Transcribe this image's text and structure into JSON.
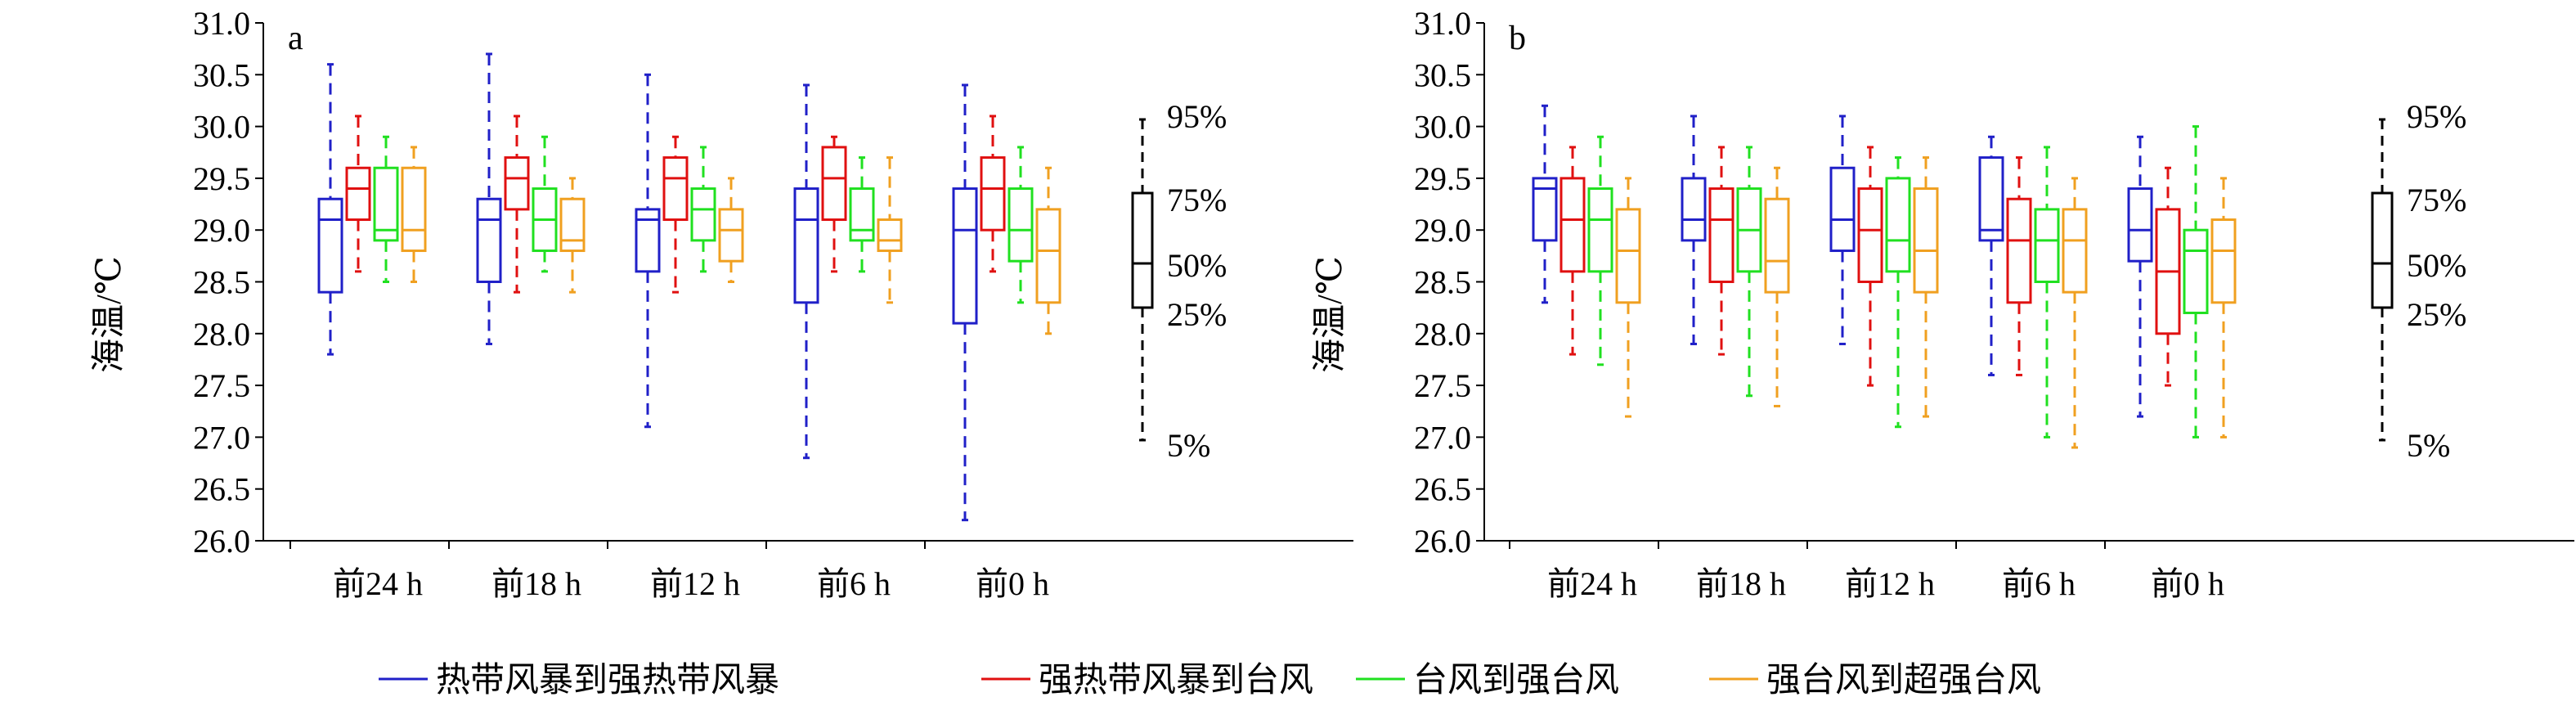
{
  "chart_data": {
    "type": "boxplot",
    "ylabel": "海温/℃",
    "ylim": [
      26.0,
      31.0
    ],
    "yticks": [
      "26.0",
      "26.5",
      "27.0",
      "27.5",
      "28.0",
      "28.5",
      "29.0",
      "29.5",
      "30.0",
      "30.5",
      "31.0"
    ],
    "categories": [
      "前24 h",
      "前18 h",
      "前12 h",
      "前6 h",
      "前0 h"
    ],
    "legend": [
      {
        "name": "热带风暴到强热带风暴",
        "color": "#2020C8"
      },
      {
        "name": "强热带风暴到台风",
        "color": "#E01010"
      },
      {
        "name": "台风到强台风",
        "color": "#20E020"
      },
      {
        "name": "强台风到超强台风",
        "color": "#F0A020"
      }
    ],
    "key": {
      "labels": [
        "95%",
        "75%",
        "50%",
        "25%",
        "5%"
      ]
    },
    "panels": [
      {
        "label": "a",
        "series": [
          {
            "name": "热带风暴到强热带风暴",
            "boxes": [
              {
                "p5": 27.8,
                "q1": 28.4,
                "median": 29.1,
                "q3": 29.3,
                "p95": 30.6
              },
              {
                "p5": 27.9,
                "q1": 28.5,
                "median": 29.1,
                "q3": 29.3,
                "p95": 30.7
              },
              {
                "p5": 27.1,
                "q1": 28.6,
                "median": 29.1,
                "q3": 29.2,
                "p95": 30.5
              },
              {
                "p5": 26.8,
                "q1": 28.3,
                "median": 29.1,
                "q3": 29.4,
                "p95": 30.4
              },
              {
                "p5": 26.2,
                "q1": 28.1,
                "median": 29.0,
                "q3": 29.4,
                "p95": 30.4
              }
            ]
          },
          {
            "name": "强热带风暴到台风",
            "boxes": [
              {
                "p5": 28.6,
                "q1": 29.1,
                "median": 29.4,
                "q3": 29.6,
                "p95": 30.1
              },
              {
                "p5": 28.4,
                "q1": 29.2,
                "median": 29.5,
                "q3": 29.7,
                "p95": 30.1
              },
              {
                "p5": 28.4,
                "q1": 29.1,
                "median": 29.5,
                "q3": 29.7,
                "p95": 29.9
              },
              {
                "p5": 28.6,
                "q1": 29.1,
                "median": 29.5,
                "q3": 29.8,
                "p95": 29.9
              },
              {
                "p5": 28.6,
                "q1": 29.0,
                "median": 29.4,
                "q3": 29.7,
                "p95": 30.1
              }
            ]
          },
          {
            "name": "台风到强台风",
            "boxes": [
              {
                "p5": 28.5,
                "q1": 28.9,
                "median": 29.0,
                "q3": 29.6,
                "p95": 29.9
              },
              {
                "p5": 28.6,
                "q1": 28.8,
                "median": 29.1,
                "q3": 29.4,
                "p95": 29.9
              },
              {
                "p5": 28.6,
                "q1": 28.9,
                "median": 29.2,
                "q3": 29.4,
                "p95": 29.8
              },
              {
                "p5": 28.6,
                "q1": 28.9,
                "median": 29.0,
                "q3": 29.4,
                "p95": 29.7
              },
              {
                "p5": 28.3,
                "q1": 28.7,
                "median": 29.0,
                "q3": 29.4,
                "p95": 29.8
              }
            ]
          },
          {
            "name": "强台风到超强台风",
            "boxes": [
              {
                "p5": 28.5,
                "q1": 28.8,
                "median": 29.0,
                "q3": 29.6,
                "p95": 29.8
              },
              {
                "p5": 28.4,
                "q1": 28.8,
                "median": 28.9,
                "q3": 29.3,
                "p95": 29.5
              },
              {
                "p5": 28.5,
                "q1": 28.7,
                "median": 29.0,
                "q3": 29.2,
                "p95": 29.5
              },
              {
                "p5": 28.3,
                "q1": 28.8,
                "median": 28.9,
                "q3": 29.1,
                "p95": 29.7
              },
              {
                "p5": 28.0,
                "q1": 28.3,
                "median": 28.8,
                "q3": 29.2,
                "p95": 29.6
              }
            ]
          }
        ]
      },
      {
        "label": "b",
        "series": [
          {
            "name": "热带风暴到强热带风暴",
            "boxes": [
              {
                "p5": 28.3,
                "q1": 28.9,
                "median": 29.4,
                "q3": 29.5,
                "p95": 30.2
              },
              {
                "p5": 27.9,
                "q1": 28.9,
                "median": 29.1,
                "q3": 29.5,
                "p95": 30.1
              },
              {
                "p5": 27.9,
                "q1": 28.8,
                "median": 29.1,
                "q3": 29.6,
                "p95": 30.1
              },
              {
                "p5": 27.6,
                "q1": 28.9,
                "median": 29.0,
                "q3": 29.7,
                "p95": 29.9
              },
              {
                "p5": 27.2,
                "q1": 28.7,
                "median": 29.0,
                "q3": 29.4,
                "p95": 29.9
              }
            ]
          },
          {
            "name": "强热带风暴到台风",
            "boxes": [
              {
                "p5": 27.8,
                "q1": 28.6,
                "median": 29.1,
                "q3": 29.5,
                "p95": 29.8
              },
              {
                "p5": 27.8,
                "q1": 28.5,
                "median": 29.1,
                "q3": 29.4,
                "p95": 29.8
              },
              {
                "p5": 27.5,
                "q1": 28.5,
                "median": 29.0,
                "q3": 29.4,
                "p95": 29.8
              },
              {
                "p5": 27.6,
                "q1": 28.3,
                "median": 28.9,
                "q3": 29.3,
                "p95": 29.7
              },
              {
                "p5": 27.5,
                "q1": 28.0,
                "median": 28.6,
                "q3": 29.2,
                "p95": 29.6
              }
            ]
          },
          {
            "name": "台风到强台风",
            "boxes": [
              {
                "p5": 27.7,
                "q1": 28.6,
                "median": 29.1,
                "q3": 29.4,
                "p95": 29.9
              },
              {
                "p5": 27.4,
                "q1": 28.6,
                "median": 29.0,
                "q3": 29.4,
                "p95": 29.8
              },
              {
                "p5": 27.1,
                "q1": 28.6,
                "median": 28.9,
                "q3": 29.5,
                "p95": 29.7
              },
              {
                "p5": 27.0,
                "q1": 28.5,
                "median": 28.9,
                "q3": 29.2,
                "p95": 29.8
              },
              {
                "p5": 27.0,
                "q1": 28.2,
                "median": 28.8,
                "q3": 29.0,
                "p95": 30.0
              }
            ]
          },
          {
            "name": "强台风到超强台风",
            "boxes": [
              {
                "p5": 27.2,
                "q1": 28.3,
                "median": 28.8,
                "q3": 29.2,
                "p95": 29.5
              },
              {
                "p5": 27.3,
                "q1": 28.4,
                "median": 28.7,
                "q3": 29.3,
                "p95": 29.6
              },
              {
                "p5": 27.2,
                "q1": 28.4,
                "median": 28.8,
                "q3": 29.4,
                "p95": 29.7
              },
              {
                "p5": 26.9,
                "q1": 28.4,
                "median": 28.9,
                "q3": 29.2,
                "p95": 29.5
              },
              {
                "p5": 27.0,
                "q1": 28.3,
                "median": 28.8,
                "q3": 29.1,
                "p95": 29.5
              }
            ]
          }
        ]
      }
    ]
  }
}
